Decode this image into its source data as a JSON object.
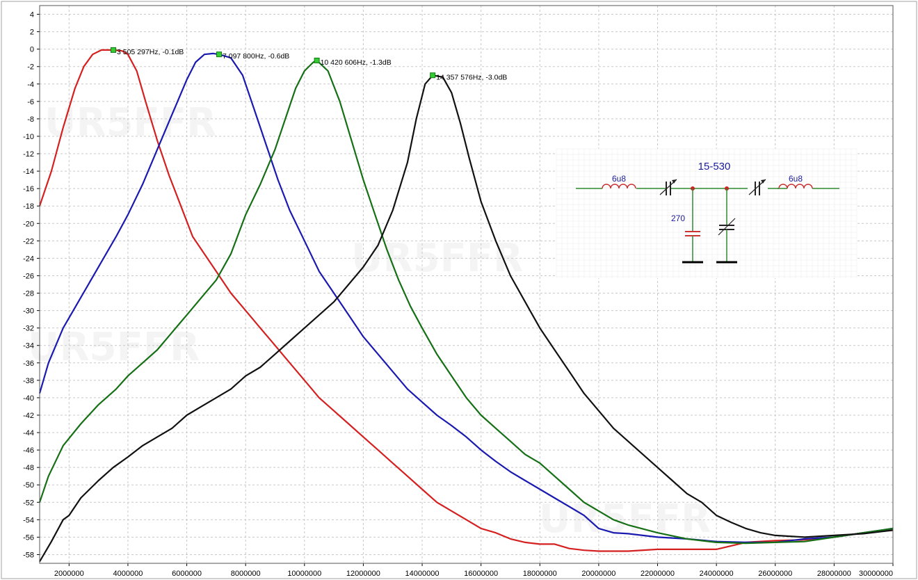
{
  "chart_data": {
    "type": "line",
    "title": "",
    "xlabel": "",
    "ylabel": "",
    "xlim": [
      1000000,
      30000000
    ],
    "ylim": [
      -59,
      5
    ],
    "x_ticks": [
      2000000,
      4000000,
      6000000,
      8000000,
      10000000,
      12000000,
      14000000,
      16000000,
      18000000,
      20000000,
      22000000,
      24000000,
      26000000,
      28000000,
      30000000
    ],
    "x_tick_labels": [
      "2000000",
      "4000000",
      "6000000",
      "8000000",
      "10000000",
      "12000000",
      "14000000",
      "16000000",
      "18000000",
      "20000000",
      "22000000",
      "24000000",
      "26000000",
      "28000000",
      "30000000"
    ],
    "y_ticks": [
      4,
      2,
      0,
      -2,
      -4,
      -6,
      -8,
      -10,
      -12,
      -14,
      -16,
      -18,
      -20,
      -22,
      -24,
      -26,
      -28,
      -30,
      -32,
      -34,
      -36,
      -38,
      -40,
      -42,
      -44,
      -46,
      -48,
      -50,
      -52,
      -54,
      -56,
      -58
    ],
    "y_tick_labels": [
      "4",
      "2",
      "0",
      "-2",
      "-4",
      "-6",
      "-8",
      "-10",
      "-12",
      "-14",
      "-16",
      "-18",
      "-20",
      "-22",
      "-24",
      "-26",
      "-28",
      "-30",
      "-32",
      "-34",
      "-36",
      "-38",
      "-40",
      "-42",
      "-44",
      "-46",
      "-48",
      "-50",
      "-52",
      "-54",
      "-56",
      "-58"
    ],
    "grid": true,
    "series": [
      {
        "color": "#d42020",
        "points": [
          [
            1000000,
            -18
          ],
          [
            1400000,
            -14
          ],
          [
            1800000,
            -9
          ],
          [
            2200000,
            -4.5
          ],
          [
            2500000,
            -2
          ],
          [
            2800000,
            -0.6
          ],
          [
            3100000,
            -0.1
          ],
          [
            3505297,
            -0.1
          ],
          [
            3800000,
            -0.2
          ],
          [
            4000000,
            -0.6
          ],
          [
            4300000,
            -2.5
          ],
          [
            4600000,
            -6
          ],
          [
            5000000,
            -10.5
          ],
          [
            5400000,
            -14.5
          ],
          [
            5800000,
            -18
          ],
          [
            6200000,
            -21.5
          ],
          [
            6600000,
            -23.5
          ],
          [
            7000000,
            -25.5
          ],
          [
            7500000,
            -28
          ],
          [
            8000000,
            -30
          ],
          [
            8500000,
            -32
          ],
          [
            9000000,
            -34
          ],
          [
            9500000,
            -36
          ],
          [
            10000000,
            -38
          ],
          [
            10500000,
            -40
          ],
          [
            11000000,
            -41.5
          ],
          [
            11500000,
            -43
          ],
          [
            12000000,
            -44.5
          ],
          [
            12500000,
            -46
          ],
          [
            13000000,
            -47.5
          ],
          [
            13500000,
            -49
          ],
          [
            14000000,
            -50.5
          ],
          [
            14500000,
            -52
          ],
          [
            15000000,
            -53
          ],
          [
            15500000,
            -54
          ],
          [
            16000000,
            -55
          ],
          [
            16500000,
            -55.5
          ],
          [
            17000000,
            -56.2
          ],
          [
            17500000,
            -56.6
          ],
          [
            18000000,
            -56.8
          ],
          [
            18500000,
            -56.8
          ],
          [
            19000000,
            -57.3
          ],
          [
            19500000,
            -57.5
          ],
          [
            20000000,
            -57.6
          ],
          [
            21000000,
            -57.6
          ],
          [
            22000000,
            -57.4
          ],
          [
            23000000,
            -57.4
          ],
          [
            24000000,
            -57.4
          ],
          [
            24500000,
            -57
          ],
          [
            25000000,
            -56.6
          ],
          [
            26000000,
            -56.4
          ],
          [
            27000000,
            -56.3
          ],
          [
            28000000,
            -56
          ],
          [
            29000000,
            -55.5
          ],
          [
            30000000,
            -55.2
          ]
        ]
      },
      {
        "color": "#1a1ab0",
        "points": [
          [
            1000000,
            -39.5
          ],
          [
            1300000,
            -36
          ],
          [
            1800000,
            -32
          ],
          [
            2400000,
            -28.5
          ],
          [
            3000000,
            -25
          ],
          [
            3600000,
            -21.5
          ],
          [
            4000000,
            -19
          ],
          [
            4500000,
            -15.5
          ],
          [
            5000000,
            -11.5
          ],
          [
            5500000,
            -7.5
          ],
          [
            6000000,
            -3.5
          ],
          [
            6300000,
            -1.5
          ],
          [
            6600000,
            -0.6
          ],
          [
            6900000,
            -0.5
          ],
          [
            7097800,
            -0.6
          ],
          [
            7500000,
            -1
          ],
          [
            7900000,
            -3
          ],
          [
            8300000,
            -7
          ],
          [
            8700000,
            -11
          ],
          [
            9100000,
            -15
          ],
          [
            9500000,
            -18.5
          ],
          [
            10000000,
            -22
          ],
          [
            10500000,
            -25.5
          ],
          [
            11000000,
            -28
          ],
          [
            11500000,
            -30.5
          ],
          [
            12000000,
            -33
          ],
          [
            12500000,
            -35
          ],
          [
            13000000,
            -37
          ],
          [
            13500000,
            -39
          ],
          [
            14000000,
            -40.5
          ],
          [
            14500000,
            -42
          ],
          [
            15000000,
            -43.2
          ],
          [
            15500000,
            -44.5
          ],
          [
            16000000,
            -46
          ],
          [
            16500000,
            -47.3
          ],
          [
            17000000,
            -48.5
          ],
          [
            17500000,
            -49.5
          ],
          [
            18000000,
            -50.5
          ],
          [
            18500000,
            -51.5
          ],
          [
            19000000,
            -52.5
          ],
          [
            19500000,
            -53.5
          ],
          [
            20000000,
            -55
          ],
          [
            20500000,
            -55.5
          ],
          [
            21000000,
            -55.6
          ],
          [
            22000000,
            -56
          ],
          [
            23000000,
            -56.2
          ],
          [
            24000000,
            -56.5
          ],
          [
            25000000,
            -56.6
          ],
          [
            26000000,
            -56.6
          ],
          [
            27000000,
            -56.2
          ],
          [
            28000000,
            -56
          ],
          [
            29000000,
            -55.5
          ],
          [
            30000000,
            -55
          ]
        ]
      },
      {
        "color": "#157015",
        "points": [
          [
            1000000,
            -52
          ],
          [
            1300000,
            -49
          ],
          [
            1800000,
            -45.5
          ],
          [
            2400000,
            -43
          ],
          [
            3000000,
            -40.8
          ],
          [
            3600000,
            -39
          ],
          [
            4000000,
            -37.5
          ],
          [
            4500000,
            -36
          ],
          [
            5000000,
            -34.5
          ],
          [
            5500000,
            -32.5
          ],
          [
            6000000,
            -30.5
          ],
          [
            6500000,
            -28.5
          ],
          [
            7000000,
            -26.5
          ],
          [
            7500000,
            -23.5
          ],
          [
            8000000,
            -19
          ],
          [
            8500000,
            -15.5
          ],
          [
            9000000,
            -11.5
          ],
          [
            9400000,
            -7.5
          ],
          [
            9700000,
            -4.5
          ],
          [
            10000000,
            -2.5
          ],
          [
            10300000,
            -1.5
          ],
          [
            10420606,
            -1.3
          ],
          [
            10800000,
            -2.5
          ],
          [
            11200000,
            -6
          ],
          [
            11600000,
            -10.5
          ],
          [
            12000000,
            -15
          ],
          [
            12400000,
            -19
          ],
          [
            12800000,
            -23
          ],
          [
            13200000,
            -26.5
          ],
          [
            13600000,
            -29.5
          ],
          [
            14000000,
            -32
          ],
          [
            14500000,
            -35
          ],
          [
            15000000,
            -37.5
          ],
          [
            15500000,
            -40
          ],
          [
            16000000,
            -42
          ],
          [
            16500000,
            -43.5
          ],
          [
            17000000,
            -45
          ],
          [
            17500000,
            -46.5
          ],
          [
            18000000,
            -47.5
          ],
          [
            18500000,
            -49
          ],
          [
            19000000,
            -50.5
          ],
          [
            19500000,
            -52
          ],
          [
            20000000,
            -53
          ],
          [
            20500000,
            -54
          ],
          [
            21000000,
            -54.6
          ],
          [
            22000000,
            -55.5
          ],
          [
            23000000,
            -56.2
          ],
          [
            24000000,
            -56.6
          ],
          [
            25000000,
            -56.7
          ],
          [
            26000000,
            -56.6
          ],
          [
            27000000,
            -56.5
          ],
          [
            28000000,
            -56
          ],
          [
            29000000,
            -55.5
          ],
          [
            30000000,
            -55
          ]
        ]
      },
      {
        "color": "#111111",
        "points": [
          [
            1000000,
            -58.8
          ],
          [
            1400000,
            -56.5
          ],
          [
            1800000,
            -54
          ],
          [
            2000000,
            -53.5
          ],
          [
            2400000,
            -51.5
          ],
          [
            3000000,
            -49.5
          ],
          [
            3500000,
            -48
          ],
          [
            4000000,
            -46.8
          ],
          [
            4500000,
            -45.5
          ],
          [
            5000000,
            -44.5
          ],
          [
            5500000,
            -43.5
          ],
          [
            6000000,
            -42
          ],
          [
            6500000,
            -41
          ],
          [
            7000000,
            -40
          ],
          [
            7500000,
            -39
          ],
          [
            8000000,
            -37.5
          ],
          [
            8500000,
            -36.5
          ],
          [
            9000000,
            -35
          ],
          [
            9500000,
            -33.5
          ],
          [
            10000000,
            -32
          ],
          [
            10500000,
            -30.5
          ],
          [
            11000000,
            -29
          ],
          [
            11500000,
            -27
          ],
          [
            12000000,
            -25
          ],
          [
            12500000,
            -22.5
          ],
          [
            13000000,
            -18.5
          ],
          [
            13500000,
            -13
          ],
          [
            13800000,
            -8
          ],
          [
            14100000,
            -4
          ],
          [
            14357576,
            -3
          ],
          [
            14700000,
            -3.2
          ],
          [
            15000000,
            -5
          ],
          [
            15300000,
            -8.5
          ],
          [
            15600000,
            -12.5
          ],
          [
            16000000,
            -17.5
          ],
          [
            16500000,
            -22
          ],
          [
            17000000,
            -26
          ],
          [
            17500000,
            -29
          ],
          [
            18000000,
            -32
          ],
          [
            18500000,
            -34.5
          ],
          [
            19000000,
            -37
          ],
          [
            19500000,
            -39.5
          ],
          [
            20000000,
            -41.5
          ],
          [
            20500000,
            -43.5
          ],
          [
            21000000,
            -45
          ],
          [
            21500000,
            -46.5
          ],
          [
            22000000,
            -48
          ],
          [
            22500000,
            -49.5
          ],
          [
            23000000,
            -51
          ],
          [
            23500000,
            -52
          ],
          [
            24000000,
            -53.5
          ],
          [
            24500000,
            -54.3
          ],
          [
            25000000,
            -55
          ],
          [
            25500000,
            -55.5
          ],
          [
            26000000,
            -55.8
          ],
          [
            27000000,
            -56
          ],
          [
            28000000,
            -55.8
          ],
          [
            29000000,
            -55.6
          ],
          [
            30000000,
            -55.2
          ]
        ]
      }
    ],
    "markers": [
      {
        "x": 3505297,
        "y": -0.1,
        "label": "3 505 297Hz, -0.1dB"
      },
      {
        "x": 7097800,
        "y": -0.6,
        "label": "7 097 800Hz, -0.6dB"
      },
      {
        "x": 10420606,
        "y": -1.3,
        "label": "10 420 606Hz, -1.3dB"
      },
      {
        "x": 14357576,
        "y": -3.0,
        "label": "14 357 576Hz, -3.0dB"
      }
    ],
    "marker_color": "#33cc33",
    "watermark": "UR5FFR"
  },
  "schematic": {
    "title": "15-530",
    "inductor_left_label": "6u8",
    "inductor_right_label": "6u8",
    "capacitor_label": "270",
    "wire_color": "#2e8b2e",
    "component_color": "#cc3333",
    "node_color": "#cc2222"
  }
}
